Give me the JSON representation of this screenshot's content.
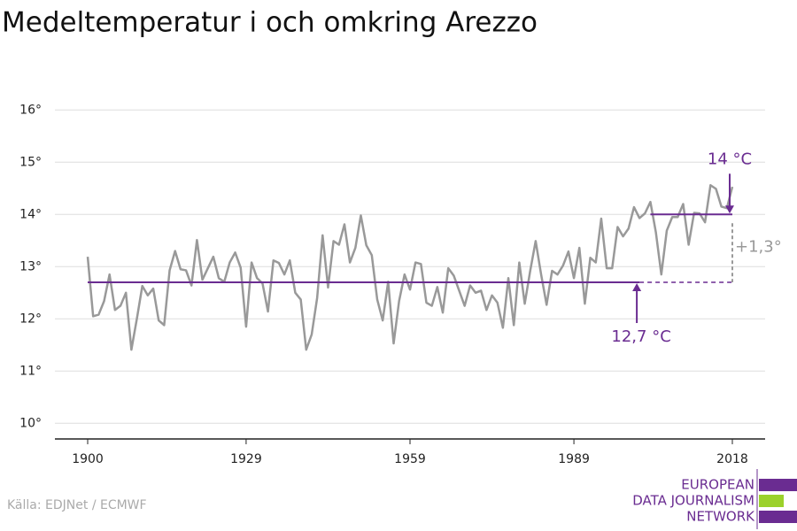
{
  "chart_data": {
    "type": "line",
    "title": "Medeltemperatur i och omkring Arezzo",
    "source": "Källa: EDJNet / ECMWF",
    "logo": [
      "EUROPEAN",
      "DATA JOURNALISM",
      "NETWORK"
    ],
    "x": [
      1900,
      1901,
      1902,
      1903,
      1904,
      1905,
      1906,
      1907,
      1908,
      1909,
      1910,
      1911,
      1912,
      1913,
      1914,
      1915,
      1916,
      1917,
      1918,
      1919,
      1920,
      1921,
      1922,
      1923,
      1924,
      1925,
      1926,
      1927,
      1928,
      1929,
      1930,
      1931,
      1932,
      1933,
      1934,
      1935,
      1936,
      1937,
      1938,
      1939,
      1940,
      1941,
      1942,
      1943,
      1944,
      1945,
      1946,
      1947,
      1948,
      1949,
      1950,
      1951,
      1952,
      1953,
      1954,
      1955,
      1956,
      1957,
      1958,
      1959,
      1960,
      1961,
      1962,
      1963,
      1964,
      1965,
      1966,
      1967,
      1968,
      1969,
      1970,
      1971,
      1972,
      1973,
      1974,
      1975,
      1976,
      1977,
      1978,
      1979,
      1980,
      1981,
      1982,
      1983,
      1984,
      1985,
      1986,
      1987,
      1988,
      1989,
      1990,
      1991,
      1992,
      1993,
      1994,
      1995,
      1996,
      1997,
      1998,
      1999,
      2000,
      2001,
      2002,
      2003,
      2004,
      2005,
      2006,
      2007,
      2008,
      2009,
      2010,
      2011,
      2012,
      2013,
      2014,
      2015,
      2016,
      2017,
      2018
    ],
    "series": [
      {
        "color": "#999999",
        "values": [
          13.19,
          12.05,
          12.08,
          12.34,
          12.85,
          12.17,
          12.25,
          12.5,
          11.41,
          12.0,
          12.63,
          12.45,
          12.58,
          11.97,
          11.88,
          12.93,
          13.3,
          12.95,
          12.93,
          12.64,
          13.51,
          12.75,
          12.97,
          13.19,
          12.78,
          12.71,
          13.08,
          13.27,
          12.98,
          11.85,
          13.08,
          12.78,
          12.68,
          12.14,
          13.12,
          13.07,
          12.85,
          13.12,
          12.5,
          12.37,
          11.41,
          11.7,
          12.4,
          13.6,
          12.6,
          13.49,
          13.42,
          13.81,
          13.08,
          13.36,
          13.98,
          13.41,
          13.22,
          12.37,
          11.97,
          12.71,
          11.53,
          12.34,
          12.85,
          12.56,
          13.08,
          13.05,
          12.31,
          12.25,
          12.61,
          12.12,
          12.97,
          12.83,
          12.54,
          12.25,
          12.64,
          12.5,
          12.54,
          12.17,
          12.45,
          12.31,
          11.83,
          12.78,
          11.88,
          13.08,
          12.29,
          12.92,
          13.49,
          12.85,
          12.27,
          12.92,
          12.85,
          13.02,
          13.29,
          12.78,
          13.36,
          12.29,
          13.17,
          13.08,
          13.92,
          12.97,
          12.97,
          13.76,
          13.58,
          13.73,
          14.14,
          13.93,
          14.02,
          14.24,
          13.66,
          12.85,
          13.69,
          13.95,
          13.95,
          14.2,
          13.42,
          14.03,
          14.02,
          13.85,
          14.56,
          14.49,
          14.15,
          14.12,
          14.53
        ]
      }
    ],
    "reference_lines": [
      {
        "label": "12,7 °C",
        "value": 12.7,
        "x": [
          1900,
          2001
        ]
      },
      {
        "label": "14 °C",
        "value": 14,
        "x": [
          2003,
          2018
        ]
      }
    ],
    "difference_label": "+1,3°",
    "reference_color": "#6a2c91",
    "xlim": [
      1894,
      2024
    ],
    "xticks": [
      1900,
      1929,
      1959,
      1989,
      2018
    ],
    "ylim": [
      9.7,
      16.3
    ],
    "yticks": [
      {
        "value": 10,
        "label": "10°"
      },
      {
        "value": 11,
        "label": "11°"
      },
      {
        "value": 12,
        "label": "12°"
      },
      {
        "value": 13,
        "label": "13°"
      },
      {
        "value": 14,
        "label": "14°"
      },
      {
        "value": 15,
        "label": "15°"
      },
      {
        "value": 16,
        "label": "16°"
      }
    ],
    "grid": true
  }
}
